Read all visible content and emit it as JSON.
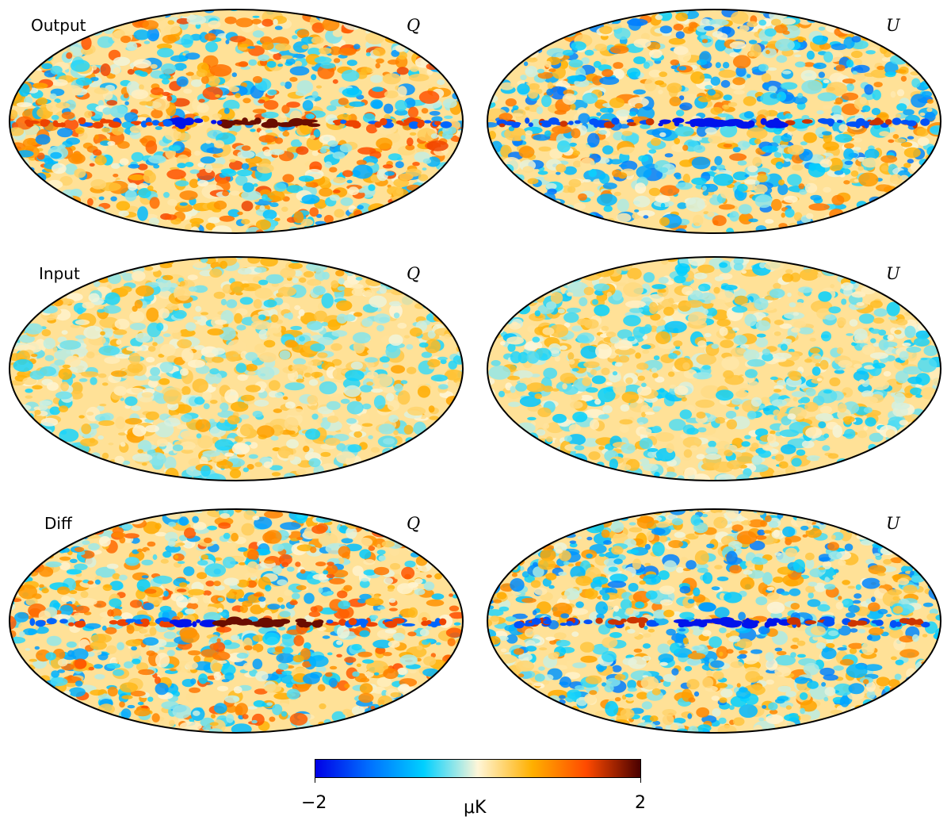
{
  "rows": [
    {
      "label": "Output",
      "panels": [
        {
          "component": "Q",
          "galactic_plane": true,
          "intensity": 1.0
        },
        {
          "component": "U",
          "galactic_plane": true,
          "intensity": 0.95
        }
      ]
    },
    {
      "label": "Input",
      "panels": [
        {
          "component": "Q",
          "galactic_plane": false,
          "intensity": 0.55
        },
        {
          "component": "U",
          "galactic_plane": false,
          "intensity": 0.55
        }
      ]
    },
    {
      "label": "Diff",
      "panels": [
        {
          "component": "Q",
          "galactic_plane": true,
          "intensity": 0.95
        },
        {
          "component": "U",
          "galactic_plane": true,
          "intensity": 0.9
        }
      ]
    }
  ],
  "colorbar": {
    "min_label": "−2",
    "max_label": "2",
    "unit_label": "μK",
    "min": -2,
    "max": 2,
    "colormap": [
      "#0000e6",
      "#0070ff",
      "#00d0ff",
      "#fff6d8",
      "#ffb000",
      "#ff4a00",
      "#4a0000"
    ]
  }
}
